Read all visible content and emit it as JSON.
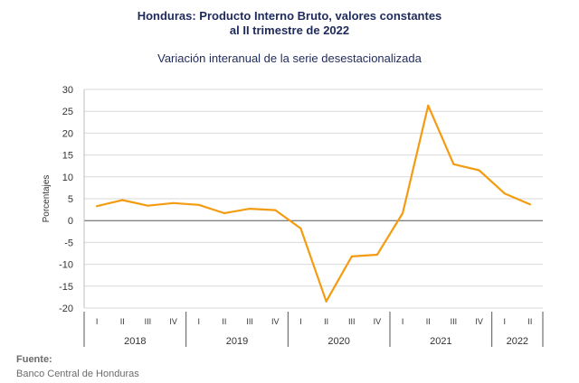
{
  "chart_data": {
    "type": "line",
    "title_line1": "Honduras: Producto Interno Bruto, valores constantes",
    "title_line2": "al II trimestre de 2022",
    "subtitle": "Variación interanual de la serie desestacionalizada",
    "ylabel": "Porcentajes",
    "ylim": [
      -20,
      30
    ],
    "yticks": [
      30,
      25,
      20,
      15,
      10,
      5,
      0,
      -5,
      -10,
      -15,
      -20
    ],
    "grid": true,
    "categories": [
      "I",
      "II",
      "III",
      "IV",
      "I",
      "II",
      "III",
      "IV",
      "I",
      "II",
      "III",
      "IV",
      "I",
      "II",
      "III",
      "IV",
      "I",
      "II"
    ],
    "years": [
      {
        "label": "2018",
        "quarters": 4
      },
      {
        "label": "2019",
        "quarters": 4
      },
      {
        "label": "2020",
        "quarters": 4
      },
      {
        "label": "2021",
        "quarters": 4
      },
      {
        "label": "2022",
        "quarters": 2
      }
    ],
    "series": [
      {
        "color": "#f39c12",
        "values": [
          3.3,
          4.7,
          3.4,
          4.0,
          3.6,
          1.7,
          2.7,
          2.4,
          -1.8,
          -18.5,
          -8.2,
          -7.8,
          1.7,
          26.3,
          12.9,
          11.5,
          6.2,
          3.7
        ]
      }
    ]
  },
  "footer": {
    "source_label": "Fuente:",
    "source_text": "Banco Central de Honduras"
  }
}
